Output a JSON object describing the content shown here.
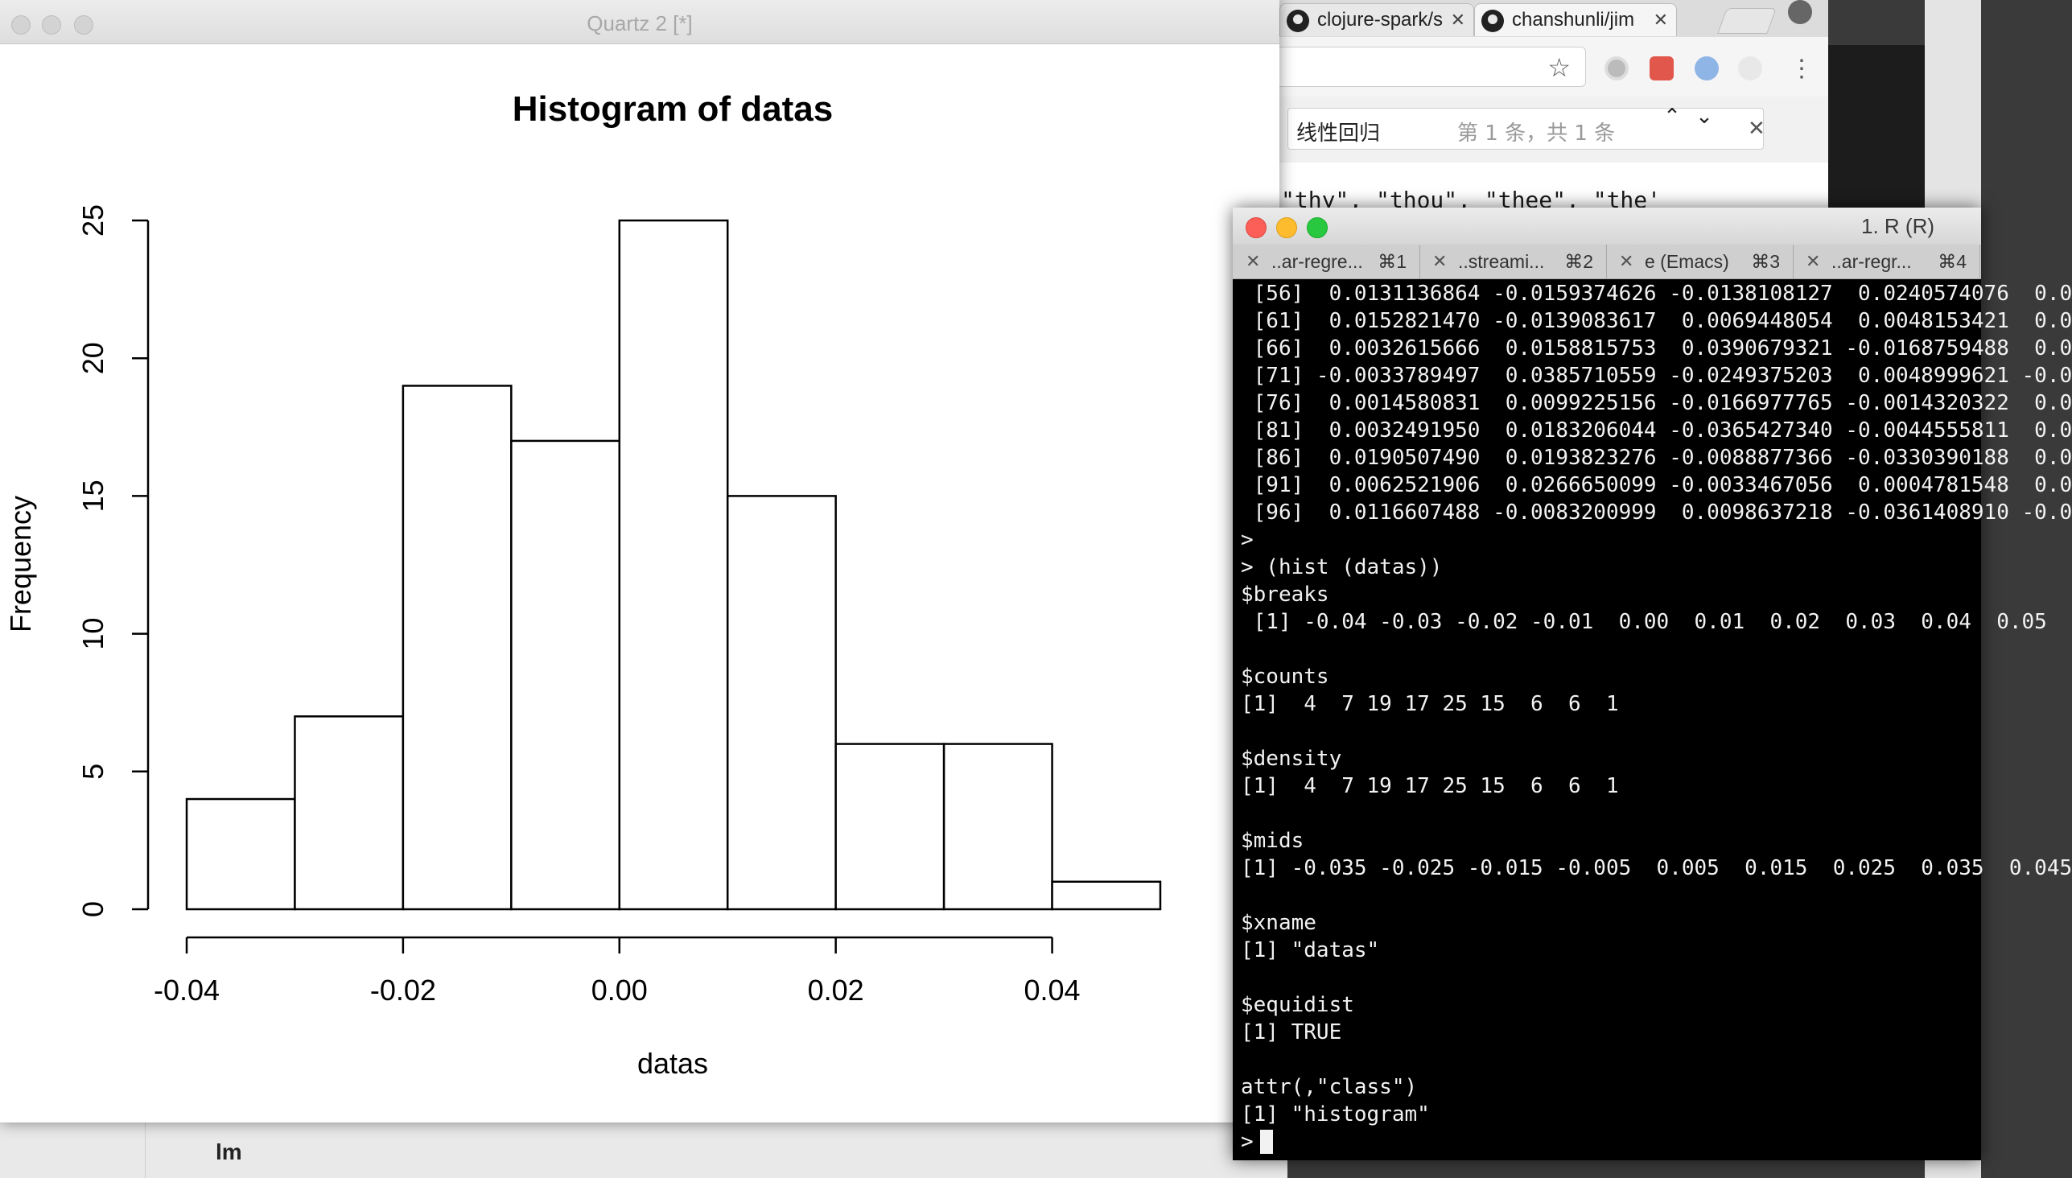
{
  "quartz": {
    "title": "Quartz 2 [*]"
  },
  "chart_data": {
    "type": "bar",
    "title": "Histogram of datas",
    "xlabel": "datas",
    "ylabel": "Frequency",
    "breaks": [
      -0.04,
      -0.03,
      -0.02,
      -0.01,
      0.0,
      0.01,
      0.02,
      0.03,
      0.04,
      0.05
    ],
    "values": [
      4,
      7,
      19,
      17,
      25,
      15,
      6,
      6,
      1
    ],
    "x_ticks": [
      "-0.04",
      "-0.02",
      "0.00",
      "0.02",
      "0.04"
    ],
    "x_tick_values": [
      -0.04,
      -0.02,
      0.0,
      0.02,
      0.04
    ],
    "y_ticks": [
      "0",
      "5",
      "10",
      "15",
      "20",
      "25"
    ],
    "y_tick_values": [
      0,
      5,
      10,
      15,
      20,
      25
    ],
    "ylim": [
      0,
      25
    ],
    "grid": false
  },
  "browser": {
    "tabs": [
      {
        "label": "clojure-spark/s"
      },
      {
        "label": "chanshunli/jim"
      }
    ],
    "find": {
      "query": "线性回归",
      "count": "第 1 条，共 1 条"
    },
    "code_snippet": "\"thy\", \"thou\", \"thee\", \"the'"
  },
  "terminal": {
    "title": "1. R (R)",
    "tabs": [
      {
        "label": "..ar-regre...",
        "shortcut": "⌘1"
      },
      {
        "label": "..streami...",
        "shortcut": "⌘2"
      },
      {
        "label": "e (Emacs)",
        "shortcut": "⌘3"
      },
      {
        "label": "..ar-regr...",
        "shortcut": "⌘4"
      }
    ],
    "lines": [
      " [56]  0.0131136864 -0.0159374626 -0.0138108127  0.0240574076  0.0",
      " [61]  0.0152821470 -0.0139083617  0.0069448054  0.0048153421  0.0",
      " [66]  0.0032615666  0.0158815753  0.0390679321 -0.0168759488  0.0",
      " [71] -0.0033789497  0.0385710559 -0.0249375203  0.0048999621 -0.0",
      " [76]  0.0014580831  0.0099225156 -0.0166977765 -0.0014320322  0.0",
      " [81]  0.0032491950  0.0183206044 -0.0365427340 -0.0044555811  0.0",
      " [86]  0.0190507490  0.0193823276 -0.0088877366 -0.0330390188  0.0",
      " [91]  0.0062521906  0.0266650099 -0.0033467056  0.0004781548  0.0",
      " [96]  0.0116607488 -0.0083200999  0.0098637218 -0.0361408910 -0.0",
      ">",
      "> (hist (datas))",
      "$breaks",
      " [1] -0.04 -0.03 -0.02 -0.01  0.00  0.01  0.02  0.03  0.04  0.05",
      "",
      "$counts",
      "[1]  4  7 19 17 25 15  6  6  1",
      "",
      "$density",
      "[1]  4  7 19 17 25 15  6  6  1",
      "",
      "$mids",
      "[1] -0.035 -0.025 -0.015 -0.005  0.005  0.015  0.025  0.035  0.045",
      "",
      "$xname",
      "[1] \"datas\"",
      "",
      "$equidist",
      "[1] TRUE",
      "",
      "attr(,\"class\")",
      "[1] \"histogram\"",
      "> "
    ]
  },
  "background": {
    "bottom_label": "lm"
  }
}
